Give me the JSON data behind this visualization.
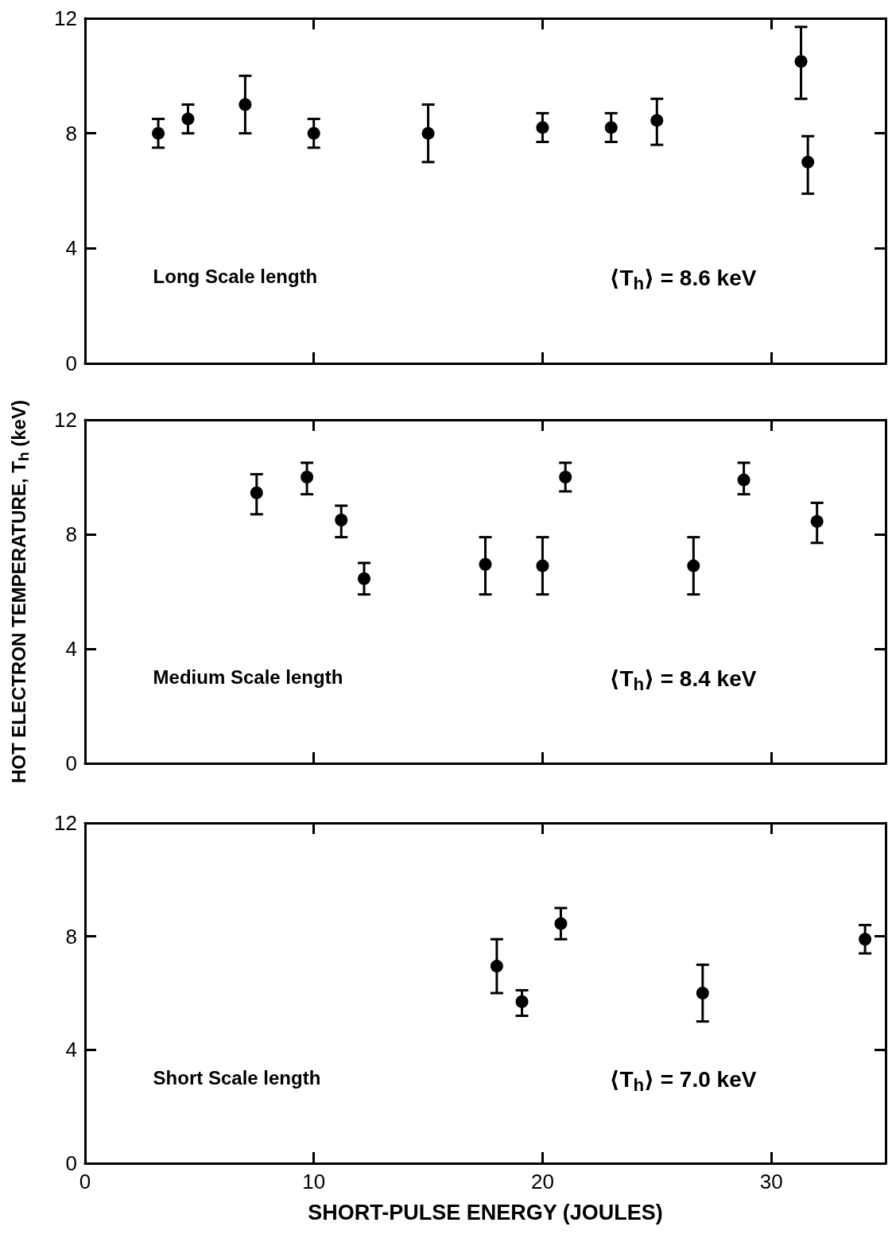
{
  "chart_data": [
    {
      "type": "scatter",
      "color": "#000000",
      "marker": "circle",
      "xlim": [
        0,
        35
      ],
      "xticks": [
        0,
        10,
        20,
        30
      ],
      "ylim": [
        0,
        12
      ],
      "yticks": [
        0,
        4,
        8,
        12
      ],
      "tick_labels": "y",
      "x": [
        3.2,
        4.5,
        7,
        10,
        15,
        20,
        23,
        25,
        31.3,
        31.6
      ],
      "values": [
        8,
        8.5,
        9,
        8,
        8,
        8.2,
        8.2,
        8.45,
        10.5,
        7
      ],
      "errors": [
        [
          7.5,
          8.5
        ],
        [
          8,
          9
        ],
        [
          8,
          10
        ],
        [
          7.5,
          8.5
        ],
        [
          7,
          9
        ],
        [
          7.7,
          8.7
        ],
        [
          7.7,
          8.7
        ],
        [
          7.6,
          9.2
        ],
        [
          9.2,
          11.7
        ],
        [
          5.9,
          7.9
        ]
      ],
      "annotations": [
        "Long Scale length",
        "⟨T$_{h}$⟩ = 8.6 keV"
      ]
    },
    {
      "type": "scatter",
      "color": "#000000",
      "marker": "circle",
      "xlim": [
        0,
        35
      ],
      "xticks": [
        0,
        10,
        20,
        30
      ],
      "ylim": [
        0,
        12
      ],
      "yticks": [
        0,
        4,
        8,
        12
      ],
      "tick_labels": "y",
      "ylabel": "HOT ELECTRON TEMPERATURE, T$_{h}$ (keV)",
      "x": [
        7.5,
        9.7,
        11.2,
        12.2,
        17.5,
        20,
        21,
        26.6,
        28.8,
        32
      ],
      "values": [
        9.45,
        10,
        8.5,
        6.45,
        6.95,
        6.9,
        10,
        6.9,
        9.9,
        8.45
      ],
      "errors": [
        [
          8.7,
          10.1
        ],
        [
          9.4,
          10.5
        ],
        [
          7.9,
          9
        ],
        [
          5.9,
          7
        ],
        [
          5.9,
          7.9
        ],
        [
          5.9,
          7.9
        ],
        [
          9.5,
          10.5
        ],
        [
          5.9,
          7.9
        ],
        [
          9.4,
          10.5
        ],
        [
          7.7,
          9.1
        ]
      ],
      "annotations": [
        "Medium Scale length",
        "⟨T$_{h}$⟩ = 8.4 keV"
      ]
    },
    {
      "type": "scatter",
      "color": "#000000",
      "marker": "circle",
      "xlim": [
        0,
        35
      ],
      "xticks": [
        0,
        10,
        20,
        30
      ],
      "ylim": [
        0,
        12
      ],
      "yticks": [
        0,
        4,
        8,
        12
      ],
      "xlabel": "SHORT-PULSE ENERGY (JOULES)",
      "x": [
        18,
        19.1,
        20.8,
        27,
        34.1
      ],
      "values": [
        6.95,
        5.7,
        8.45,
        6,
        7.9
      ],
      "errors": [
        [
          6,
          7.9
        ],
        [
          5.2,
          6.1
        ],
        [
          7.9,
          9
        ],
        [
          5,
          7
        ],
        [
          7.4,
          8.4
        ]
      ],
      "annotations": [
        "Short Scale length",
        "⟨T$_{h}$⟩ = 7.0 keV"
      ]
    }
  ]
}
